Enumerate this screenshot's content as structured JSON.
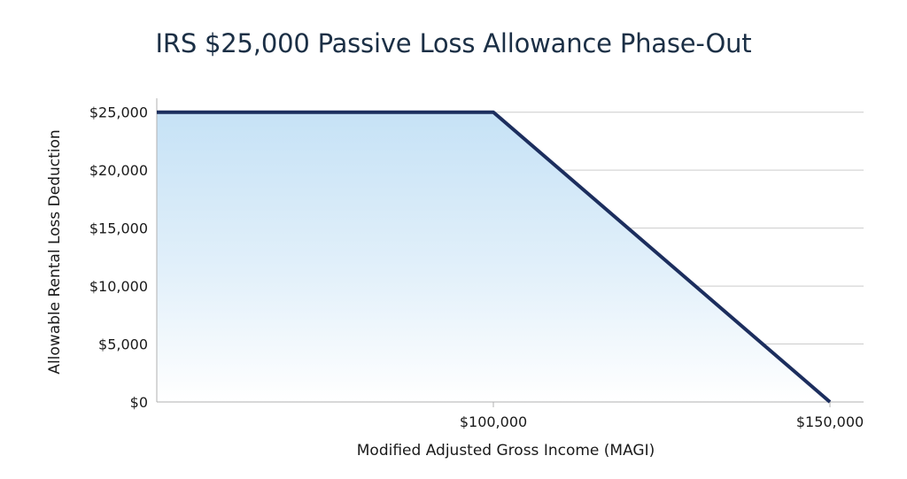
{
  "chart_data": {
    "type": "area",
    "title": "IRS $25,000 Passive Loss Allowance Phase-Out",
    "xlabel": "Modified Adjusted Gross Income (MAGI)",
    "ylabel": "Allowable Rental Loss Deduction",
    "x": [
      50000,
      100000,
      150000
    ],
    "y": [
      25000,
      25000,
      0
    ],
    "xlim": [
      50000,
      155000
    ],
    "ylim": [
      0,
      26200
    ],
    "x_ticks": [
      100000,
      150000
    ],
    "x_tick_labels": [
      "$100,000",
      "$150,000"
    ],
    "y_ticks": [
      0,
      5000,
      10000,
      15000,
      20000,
      25000
    ],
    "y_tick_labels": [
      "$0",
      "$5,000",
      "$10,000",
      "$15,000",
      "$20,000",
      "$25,000"
    ],
    "grid": "horizontal",
    "colors": {
      "line": "#1c2e5e",
      "fill_top": "#c6e2f6",
      "fill_bottom": "#ffffff",
      "grid": "#cccccc",
      "title": "#1b2f45"
    }
  }
}
